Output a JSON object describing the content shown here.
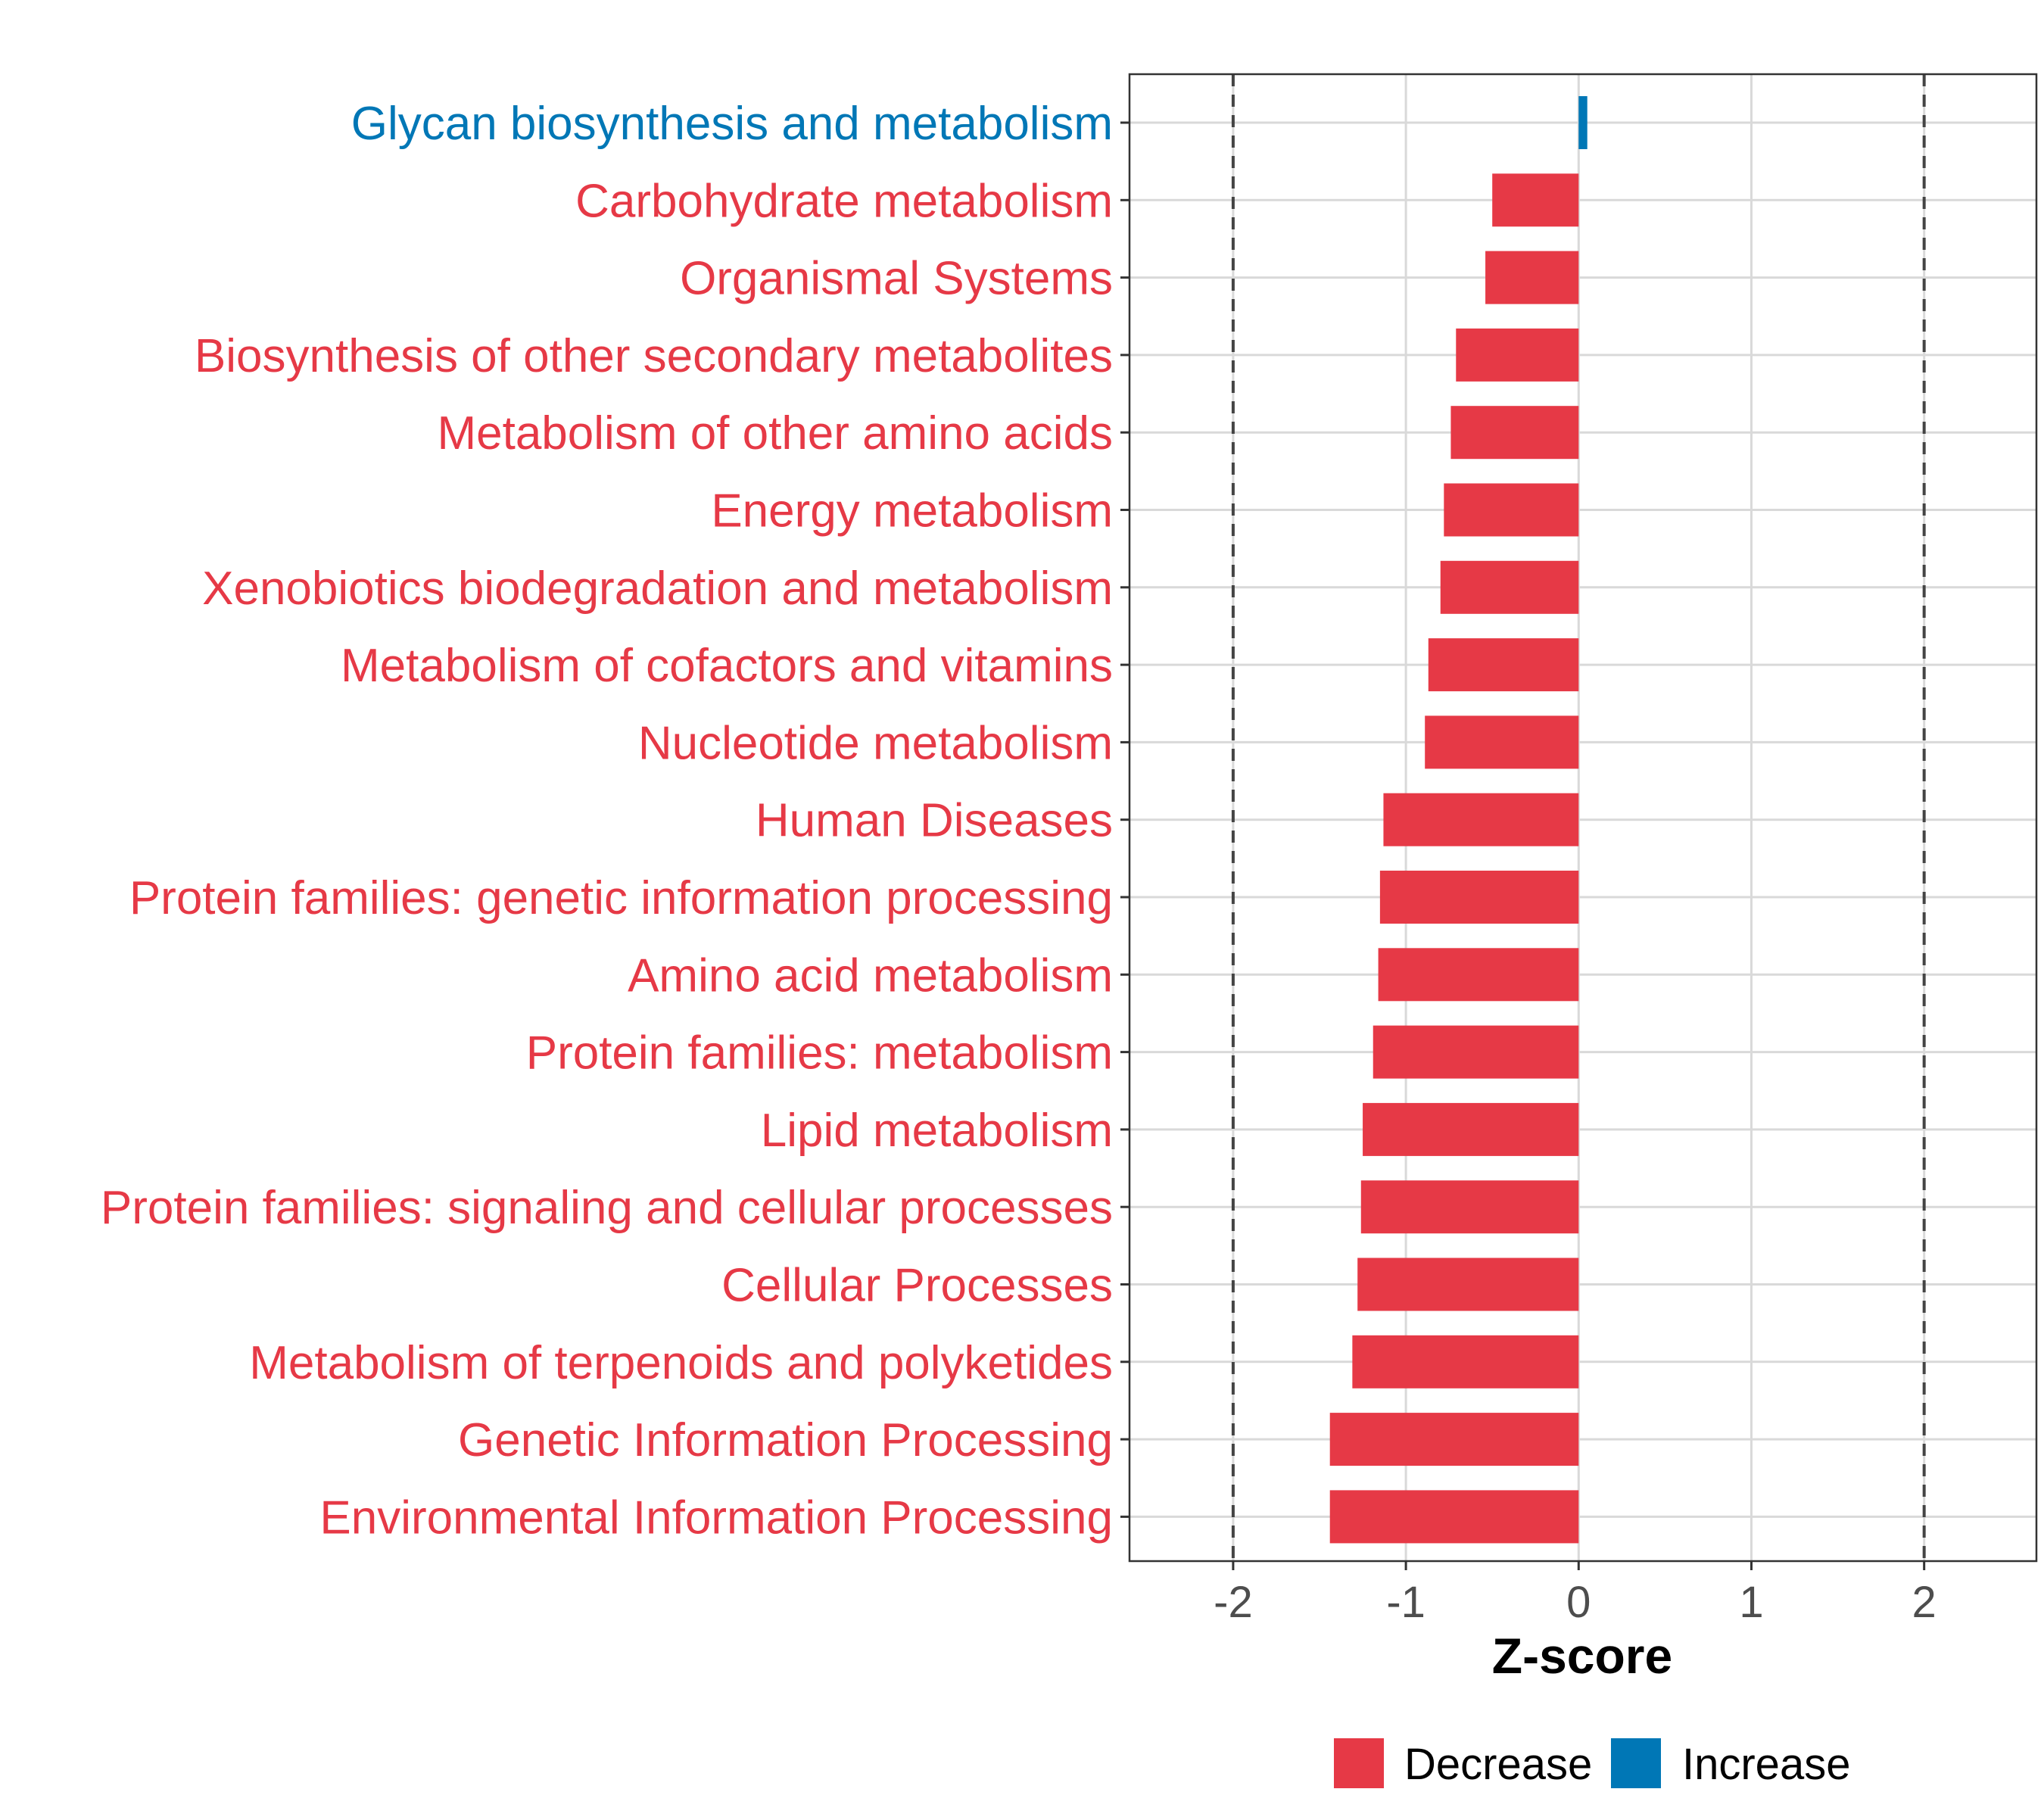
{
  "chart_data": {
    "type": "bar",
    "orientation": "horizontal",
    "title": "",
    "xlabel": "Z-score",
    "ylabel": "",
    "xlim": [
      -2.6,
      2.65
    ],
    "x_ticks": [
      -2,
      -1,
      0,
      1,
      2
    ],
    "x_tick_labels": [
      "-2",
      "-1",
      "0",
      "1",
      "2"
    ],
    "threshold_lines": [
      -2,
      2
    ],
    "grid": true,
    "categories": [
      "Glycan biosynthesis and metabolism",
      "Carbohydrate metabolism",
      "Organismal Systems",
      "Biosynthesis of other secondary metabolites",
      "Metabolism of other amino acids",
      "Energy metabolism",
      "Xenobiotics biodegradation and metabolism",
      "Metabolism of cofactors and vitamins",
      "Nucleotide metabolism",
      "Human Diseases",
      "Protein families: genetic information processing",
      "Amino acid metabolism",
      "Protein families: metabolism",
      "Lipid metabolism",
      "Protein families: signaling and cellular processes",
      "Cellular Processes",
      "Metabolism of terpenoids and polyketides",
      "Genetic Information Processing",
      "Environmental Information Processing"
    ],
    "values": [
      0.05,
      -0.5,
      -0.54,
      -0.71,
      -0.74,
      -0.78,
      -0.8,
      -0.87,
      -0.89,
      -1.13,
      -1.15,
      -1.16,
      -1.19,
      -1.25,
      -1.26,
      -1.28,
      -1.31,
      -1.44,
      -1.44
    ],
    "groups": [
      "Increase",
      "Decrease",
      "Decrease",
      "Decrease",
      "Decrease",
      "Decrease",
      "Decrease",
      "Decrease",
      "Decrease",
      "Decrease",
      "Decrease",
      "Decrease",
      "Decrease",
      "Decrease",
      "Decrease",
      "Decrease",
      "Decrease",
      "Decrease",
      "Decrease"
    ],
    "legend": {
      "position": "bottom",
      "entries": [
        {
          "label": "Decrease",
          "color": "#E63946"
        },
        {
          "label": "Increase",
          "color": "#0077B6"
        }
      ]
    },
    "colors": {
      "Decrease": "#E63946",
      "Increase": "#0077B6",
      "grid": "#d9d9d9",
      "frame": "#333333",
      "threshold": "#444444"
    }
  }
}
